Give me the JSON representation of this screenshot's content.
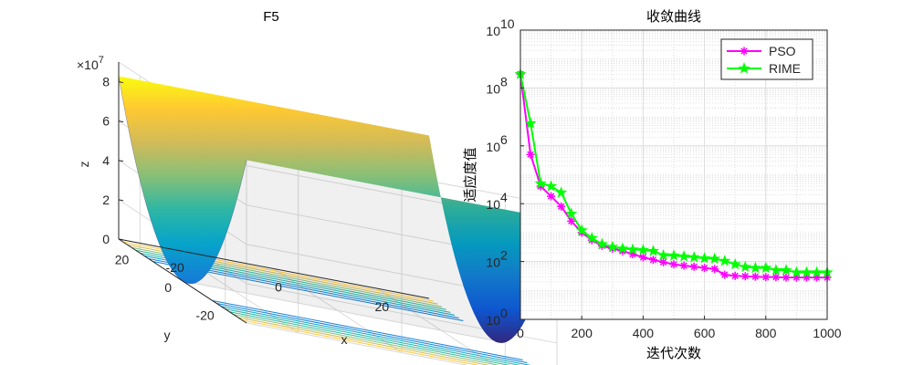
{
  "chart_data": [
    {
      "type": "surface",
      "title": "F5",
      "xlabel": "x",
      "ylabel": "y",
      "zlabel": "z",
      "z_exponent_label": "×10",
      "z_exponent_power": "7",
      "x_ticks": [
        "-20",
        "0",
        "20"
      ],
      "y_ticks": [
        "20",
        "0",
        "-20"
      ],
      "z_ticks": [
        "0",
        "2",
        "4",
        "6",
        "8"
      ],
      "zlim": [
        0,
        9
      ],
      "colormap": [
        "#352a87",
        "#0f5cdd",
        "#1481d6",
        "#06a4ca",
        "#2eb7a4",
        "#87bf77",
        "#d1bb59",
        "#fec832",
        "#f9fb0e"
      ],
      "grid": true
    },
    {
      "type": "line",
      "title": "收敛曲线",
      "xlabel": "迭代次数",
      "ylabel": "适应度值",
      "yscale": "log",
      "xlim": [
        0,
        1000
      ],
      "ylim": [
        1,
        10000000000
      ],
      "x_ticks": [
        "0",
        "200",
        "400",
        "600",
        "800",
        "1000"
      ],
      "y_tick_base": "10",
      "y_tick_exponents": [
        "0",
        "2",
        "4",
        "6",
        "8",
        "10"
      ],
      "legend_position": "top-right",
      "grid": true,
      "series": [
        {
          "name": "PSO",
          "color": "#ff00ff",
          "marker": "asterisk",
          "x": [
            0,
            33,
            66,
            100,
            133,
            166,
            200,
            233,
            266,
            300,
            333,
            366,
            400,
            433,
            466,
            500,
            533,
            566,
            600,
            633,
            666,
            700,
            733,
            766,
            800,
            833,
            866,
            900,
            933,
            966,
            1000
          ],
          "y": [
            300000000,
            500000,
            40000,
            18000,
            8000,
            2500,
            1000,
            550,
            350,
            280,
            230,
            180,
            140,
            115,
            95,
            80,
            72,
            66,
            60,
            55,
            35,
            32,
            31,
            30,
            29,
            29,
            28,
            28,
            28,
            28,
            28
          ]
        },
        {
          "name": "RIME",
          "color": "#00ff00",
          "marker": "pentagram",
          "x": [
            0,
            33,
            66,
            100,
            133,
            166,
            200,
            233,
            266,
            300,
            333,
            366,
            400,
            433,
            466,
            500,
            533,
            566,
            600,
            633,
            666,
            700,
            733,
            766,
            800,
            833,
            866,
            900,
            933,
            966,
            1000
          ],
          "y": [
            300000000,
            6000000,
            50000,
            40000,
            24000,
            4500,
            1200,
            650,
            400,
            320,
            280,
            260,
            250,
            230,
            165,
            160,
            150,
            140,
            130,
            125,
            105,
            80,
            65,
            60,
            60,
            50,
            50,
            42,
            42,
            42,
            42
          ]
        }
      ]
    }
  ]
}
